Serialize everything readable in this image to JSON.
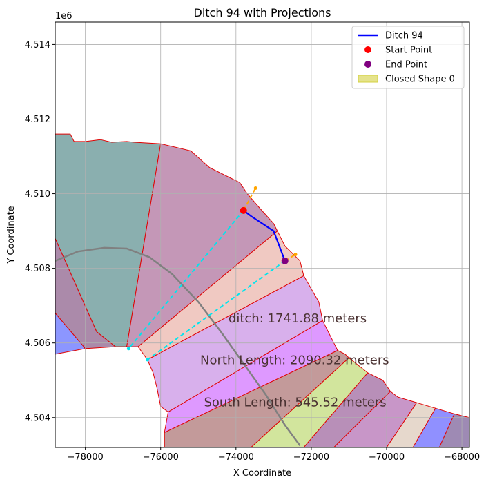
{
  "chart_data": {
    "type": "line",
    "title": "Ditch 94 with Projections",
    "xlabel": "X Coordinate",
    "ylabel": "Y Coordinate",
    "y_offset_label": "1e6",
    "xlim": [
      -78800,
      -67800
    ],
    "ylim": [
      4503200,
      4514600
    ],
    "grid": true,
    "legend_placement": "top-right",
    "x_ticks": [
      {
        "value": -78000,
        "label": "−78000"
      },
      {
        "value": -76000,
        "label": "−76000"
      },
      {
        "value": -74000,
        "label": "−74000"
      },
      {
        "value": -72000,
        "label": "−72000"
      },
      {
        "value": -70000,
        "label": "−70000"
      },
      {
        "value": -68000,
        "label": "−68000"
      }
    ],
    "y_ticks": [
      {
        "value": 4504000,
        "label": "4.504"
      },
      {
        "value": 4506000,
        "label": "4.506"
      },
      {
        "value": 4508000,
        "label": "4.508"
      },
      {
        "value": 4510000,
        "label": "4.510"
      },
      {
        "value": 4512000,
        "label": "4.512"
      },
      {
        "value": 4514000,
        "label": "4.514"
      }
    ],
    "legend": [
      {
        "label": "Ditch 94",
        "kind": "line",
        "color": "#0000ff"
      },
      {
        "label": "Start Point",
        "kind": "dot",
        "color": "#ff0000"
      },
      {
        "label": "End Point",
        "kind": "dot",
        "color": "#800080"
      },
      {
        "label": "Closed Shape 0",
        "kind": "patch",
        "color": "#d4d040"
      }
    ],
    "shapes": [
      {
        "fill": "#8aafaf",
        "points": [
          [
            -78800,
            4511600
          ],
          [
            -78400,
            4511600
          ],
          [
            -78300,
            4511400
          ],
          [
            -78000,
            4511400
          ],
          [
            -77600,
            4511450
          ],
          [
            -77300,
            4511380
          ],
          [
            -76900,
            4511400
          ],
          [
            -76700,
            4511380
          ],
          [
            -76000,
            4511340
          ],
          [
            -76900,
            4505900
          ],
          [
            -77200,
            4505900
          ],
          [
            -77700,
            4506300
          ],
          [
            -78800,
            4508800
          ]
        ]
      },
      {
        "fill": "#c497b7",
        "points": [
          [
            -76000,
            4511340
          ],
          [
            -75200,
            4511150
          ],
          [
            -74700,
            4510700
          ],
          [
            -73900,
            4510300
          ],
          [
            -73700,
            4510000
          ],
          [
            -73400,
            4509650
          ],
          [
            -73000,
            4509200
          ],
          [
            -72900,
            4509000
          ],
          [
            -76600,
            4505900
          ],
          [
            -76900,
            4505900
          ]
        ]
      },
      {
        "fill": "#ab8aaa",
        "points": [
          [
            -78800,
            4508800
          ],
          [
            -77700,
            4506300
          ],
          [
            -77200,
            4505900
          ],
          [
            -78000,
            4505850
          ],
          [
            -78800,
            4506800
          ]
        ]
      },
      {
        "fill": "#8c96ff",
        "points": [
          [
            -78800,
            4506800
          ],
          [
            -78000,
            4505850
          ],
          [
            -78800,
            4505700
          ]
        ]
      },
      {
        "fill": "#f0c9c2",
        "points": [
          [
            -72900,
            4509000
          ],
          [
            -72700,
            4508600
          ],
          [
            -72500,
            4508400
          ],
          [
            -72300,
            4508200
          ],
          [
            -72200,
            4507800
          ],
          [
            -76350,
            4505550
          ],
          [
            -76600,
            4505900
          ]
        ]
      },
      {
        "fill": "#d8b0ec",
        "points": [
          [
            -72200,
            4507800
          ],
          [
            -71800,
            4507100
          ],
          [
            -71700,
            4506600
          ],
          [
            -75800,
            4504150
          ],
          [
            -76000,
            4504300
          ],
          [
            -76100,
            4504800
          ],
          [
            -76200,
            4505200
          ],
          [
            -76350,
            4505550
          ]
        ]
      },
      {
        "fill": "#de99ff",
        "points": [
          [
            -71700,
            4506600
          ],
          [
            -71400,
            4506000
          ],
          [
            -71300,
            4505800
          ],
          [
            -75900,
            4503600
          ],
          [
            -75800,
            4504150
          ]
        ]
      },
      {
        "fill": "#c39a9a",
        "points": [
          [
            -71300,
            4505800
          ],
          [
            -71100,
            4505700
          ],
          [
            -71000,
            4505600
          ],
          [
            -73600,
            4503200
          ],
          [
            -75900,
            4503200
          ],
          [
            -75900,
            4503600
          ]
        ]
      },
      {
        "fill": "#d2e59d",
        "points": [
          [
            -71000,
            4505600
          ],
          [
            -70500,
            4505200
          ],
          [
            -72200,
            4503200
          ],
          [
            -73600,
            4503200
          ]
        ]
      },
      {
        "fill": "#b88fb8",
        "points": [
          [
            -70500,
            4505200
          ],
          [
            -70100,
            4505000
          ],
          [
            -69900,
            4504700
          ],
          [
            -71400,
            4503200
          ],
          [
            -72200,
            4503200
          ]
        ]
      },
      {
        "fill": "#c896c8",
        "points": [
          [
            -69900,
            4504700
          ],
          [
            -69700,
            4504550
          ],
          [
            -69200,
            4504400
          ],
          [
            -70000,
            4503200
          ],
          [
            -71400,
            4503200
          ]
        ]
      },
      {
        "fill": "#e6d8cc",
        "points": [
          [
            -69200,
            4504400
          ],
          [
            -68700,
            4504250
          ],
          [
            -69300,
            4503200
          ],
          [
            -70000,
            4503200
          ]
        ]
      },
      {
        "fill": "#9090ff",
        "points": [
          [
            -68700,
            4504250
          ],
          [
            -68200,
            4504100
          ],
          [
            -68600,
            4503200
          ],
          [
            -69300,
            4503200
          ]
        ]
      },
      {
        "fill": "#9e8ab4",
        "points": [
          [
            -68200,
            4504100
          ],
          [
            -67800,
            4504000
          ],
          [
            -67800,
            4503200
          ],
          [
            -68600,
            4503200
          ]
        ]
      }
    ],
    "arc": {
      "color": "#808080",
      "points": [
        [
          -78800,
          4508200
        ],
        [
          -78200,
          4508450
        ],
        [
          -77500,
          4508550
        ],
        [
          -76900,
          4508530
        ],
        [
          -76300,
          4508300
        ],
        [
          -75700,
          4507850
        ],
        [
          -75000,
          4507100
        ],
        [
          -74400,
          4506300
        ],
        [
          -73800,
          4505450
        ],
        [
          -73200,
          4504600
        ],
        [
          -72700,
          4503800
        ],
        [
          -72300,
          4503250
        ]
      ]
    },
    "series": [
      {
        "name": "Ditch 94",
        "color": "#0000ff",
        "x": [
          -73800,
          -73600,
          -73000,
          -72700
        ],
        "y": [
          4509550,
          4509400,
          4509000,
          4508200
        ]
      }
    ],
    "projections": [
      {
        "color": "#00e5ee",
        "x": [
          -73800,
          -76850
        ],
        "y": [
          4509550,
          4505850
        ]
      },
      {
        "color": "#00e5ee",
        "x": [
          -72700,
          -76350
        ],
        "y": [
          4508200,
          4505550
        ]
      },
      {
        "color": "#ffa500",
        "x": [
          -73800,
          -73480
        ],
        "y": [
          4509550,
          4510150
        ]
      },
      {
        "color": "#ffa500",
        "x": [
          -72700,
          -72420
        ],
        "y": [
          4508200,
          4508370
        ]
      }
    ],
    "start_point": {
      "x": -73800,
      "y": 4509550,
      "color": "#ff0000"
    },
    "end_point": {
      "x": -72700,
      "y": 4508200,
      "color": "#800080"
    },
    "annotations": [
      {
        "text": "ditch: 1741.88 meters",
        "x": -74200,
        "y": 4506550
      },
      {
        "text": "North Length: 2090.32 meters",
        "x": -74950,
        "y": 4505430
      },
      {
        "text": "South Length: 545.52 meters",
        "x": -74850,
        "y": 4504300
      }
    ]
  }
}
